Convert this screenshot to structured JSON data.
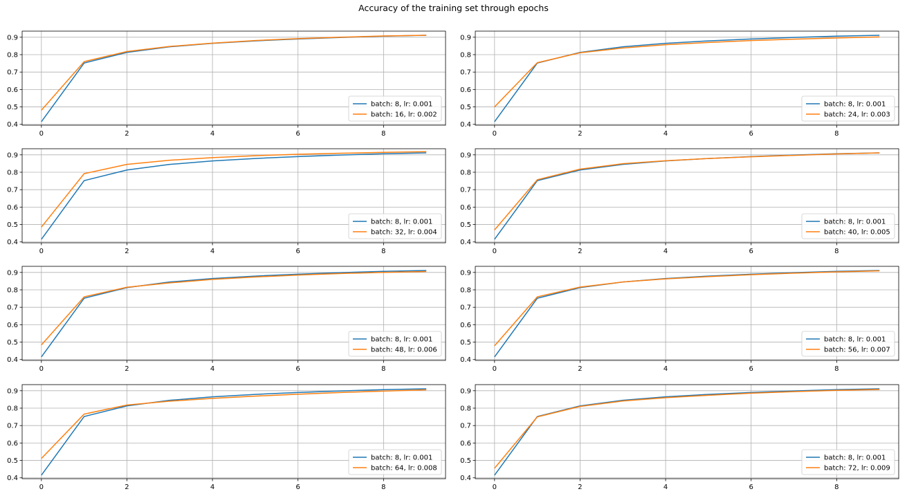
{
  "figure": {
    "title": "Accuracy of the training set through epochs"
  },
  "chart_data": [
    {
      "type": "line",
      "x": [
        0,
        1,
        2,
        3,
        4,
        5,
        6,
        7,
        8,
        9
      ],
      "xticks": [
        "0",
        "2",
        "4",
        "6",
        "8"
      ],
      "yticks": [
        "0.4",
        "0.5",
        "0.6",
        "0.7",
        "0.8",
        "0.9"
      ],
      "ylim": [
        0.395,
        0.935
      ],
      "xlim": [
        -0.45,
        9.45
      ],
      "grid": true,
      "legend_position": "lower-right",
      "series": [
        {
          "name": "batch: 8, lr: 0.001",
          "color": "#1f77b4",
          "values": [
            0.415,
            0.752,
            0.813,
            0.845,
            0.865,
            0.879,
            0.89,
            0.899,
            0.906,
            0.911
          ]
        },
        {
          "name": "batch: 16, lr: 0.002",
          "color": "#ff7f0e",
          "values": [
            0.481,
            0.76,
            0.818,
            0.847,
            0.866,
            0.881,
            0.892,
            0.9,
            0.907,
            0.911
          ]
        }
      ]
    },
    {
      "type": "line",
      "x": [
        0,
        1,
        2,
        3,
        4,
        5,
        6,
        7,
        8,
        9
      ],
      "xticks": [
        "0",
        "2",
        "4",
        "6",
        "8"
      ],
      "yticks": [
        "0.4",
        "0.5",
        "0.6",
        "0.7",
        "0.8",
        "0.9"
      ],
      "ylim": [
        0.395,
        0.935
      ],
      "xlim": [
        -0.45,
        9.45
      ],
      "grid": true,
      "legend_position": "lower-right",
      "series": [
        {
          "name": "batch: 8, lr: 0.001",
          "color": "#1f77b4",
          "values": [
            0.415,
            0.752,
            0.813,
            0.845,
            0.865,
            0.879,
            0.89,
            0.899,
            0.906,
            0.911
          ]
        },
        {
          "name": "batch: 24, lr: 0.003",
          "color": "#ff7f0e",
          "values": [
            0.5,
            0.754,
            0.811,
            0.838,
            0.857,
            0.87,
            0.881,
            0.889,
            0.896,
            0.902
          ]
        }
      ]
    },
    {
      "type": "line",
      "x": [
        0,
        1,
        2,
        3,
        4,
        5,
        6,
        7,
        8,
        9
      ],
      "xticks": [
        "0",
        "2",
        "4",
        "6",
        "8"
      ],
      "yticks": [
        "0.4",
        "0.5",
        "0.6",
        "0.7",
        "0.8",
        "0.9"
      ],
      "ylim": [
        0.395,
        0.935
      ],
      "xlim": [
        -0.45,
        9.45
      ],
      "grid": true,
      "legend_position": "lower-right",
      "series": [
        {
          "name": "batch: 8, lr: 0.001",
          "color": "#1f77b4",
          "values": [
            0.415,
            0.752,
            0.813,
            0.845,
            0.865,
            0.879,
            0.89,
            0.899,
            0.906,
            0.911
          ]
        },
        {
          "name": "batch: 32, lr: 0.004",
          "color": "#ff7f0e",
          "values": [
            0.485,
            0.792,
            0.845,
            0.869,
            0.884,
            0.895,
            0.903,
            0.909,
            0.914,
            0.918
          ]
        }
      ]
    },
    {
      "type": "line",
      "x": [
        0,
        1,
        2,
        3,
        4,
        5,
        6,
        7,
        8,
        9
      ],
      "xticks": [
        "0",
        "2",
        "4",
        "6",
        "8"
      ],
      "yticks": [
        "0.4",
        "0.5",
        "0.6",
        "0.7",
        "0.8",
        "0.9"
      ],
      "ylim": [
        0.395,
        0.935
      ],
      "xlim": [
        -0.45,
        9.45
      ],
      "grid": true,
      "legend_position": "lower-right",
      "series": [
        {
          "name": "batch: 8, lr: 0.001",
          "color": "#1f77b4",
          "values": [
            0.415,
            0.752,
            0.813,
            0.845,
            0.865,
            0.879,
            0.89,
            0.899,
            0.906,
            0.911
          ]
        },
        {
          "name": "batch: 40, lr: 0.005",
          "color": "#ff7f0e",
          "values": [
            0.469,
            0.757,
            0.818,
            0.849,
            0.866,
            0.879,
            0.889,
            0.897,
            0.905,
            0.911
          ]
        }
      ]
    },
    {
      "type": "line",
      "x": [
        0,
        1,
        2,
        3,
        4,
        5,
        6,
        7,
        8,
        9
      ],
      "xticks": [
        "0",
        "2",
        "4",
        "6",
        "8"
      ],
      "yticks": [
        "0.4",
        "0.5",
        "0.6",
        "0.7",
        "0.8",
        "0.9"
      ],
      "ylim": [
        0.395,
        0.935
      ],
      "xlim": [
        -0.45,
        9.45
      ],
      "grid": true,
      "legend_position": "lower-right",
      "series": [
        {
          "name": "batch: 8, lr: 0.001",
          "color": "#1f77b4",
          "values": [
            0.415,
            0.752,
            0.813,
            0.845,
            0.865,
            0.879,
            0.89,
            0.899,
            0.906,
            0.911
          ]
        },
        {
          "name": "batch: 48, lr: 0.006",
          "color": "#ff7f0e",
          "values": [
            0.484,
            0.76,
            0.815,
            0.84,
            0.86,
            0.874,
            0.885,
            0.894,
            0.9,
            0.905
          ]
        }
      ]
    },
    {
      "type": "line",
      "x": [
        0,
        1,
        2,
        3,
        4,
        5,
        6,
        7,
        8,
        9
      ],
      "xticks": [
        "0",
        "2",
        "4",
        "6",
        "8"
      ],
      "yticks": [
        "0.4",
        "0.5",
        "0.6",
        "0.7",
        "0.8",
        "0.9"
      ],
      "ylim": [
        0.395,
        0.935
      ],
      "xlim": [
        -0.45,
        9.45
      ],
      "grid": true,
      "legend_position": "lower-right",
      "series": [
        {
          "name": "batch: 8, lr: 0.001",
          "color": "#1f77b4",
          "values": [
            0.415,
            0.752,
            0.813,
            0.845,
            0.865,
            0.879,
            0.89,
            0.899,
            0.906,
            0.911
          ]
        },
        {
          "name": "batch: 56, lr: 0.007",
          "color": "#ff7f0e",
          "values": [
            0.479,
            0.76,
            0.816,
            0.845,
            0.863,
            0.876,
            0.887,
            0.896,
            0.903,
            0.909
          ]
        }
      ]
    },
    {
      "type": "line",
      "x": [
        0,
        1,
        2,
        3,
        4,
        5,
        6,
        7,
        8,
        9
      ],
      "xticks": [
        "0",
        "2",
        "4",
        "6",
        "8"
      ],
      "yticks": [
        "0.4",
        "0.5",
        "0.6",
        "0.7",
        "0.8",
        "0.9"
      ],
      "ylim": [
        0.395,
        0.935
      ],
      "xlim": [
        -0.45,
        9.45
      ],
      "grid": true,
      "legend_position": "lower-right",
      "series": [
        {
          "name": "batch: 8, lr: 0.001",
          "color": "#1f77b4",
          "values": [
            0.415,
            0.752,
            0.813,
            0.845,
            0.865,
            0.879,
            0.89,
            0.899,
            0.906,
            0.911
          ]
        },
        {
          "name": "batch: 64, lr: 0.008",
          "color": "#ff7f0e",
          "values": [
            0.511,
            0.766,
            0.818,
            0.84,
            0.856,
            0.869,
            0.88,
            0.89,
            0.898,
            0.905
          ]
        }
      ]
    },
    {
      "type": "line",
      "x": [
        0,
        1,
        2,
        3,
        4,
        5,
        6,
        7,
        8,
        9
      ],
      "xticks": [
        "0",
        "2",
        "4",
        "6",
        "8"
      ],
      "yticks": [
        "0.4",
        "0.5",
        "0.6",
        "0.7",
        "0.8",
        "0.9"
      ],
      "ylim": [
        0.395,
        0.935
      ],
      "xlim": [
        -0.45,
        9.45
      ],
      "grid": true,
      "legend_position": "lower-right",
      "series": [
        {
          "name": "batch: 8, lr: 0.001",
          "color": "#1f77b4",
          "values": [
            0.415,
            0.752,
            0.813,
            0.845,
            0.865,
            0.879,
            0.89,
            0.899,
            0.906,
            0.911
          ]
        },
        {
          "name": "batch: 72, lr: 0.009",
          "color": "#ff7f0e",
          "values": [
            0.455,
            0.75,
            0.81,
            0.841,
            0.86,
            0.874,
            0.886,
            0.895,
            0.902,
            0.907
          ]
        }
      ]
    }
  ]
}
